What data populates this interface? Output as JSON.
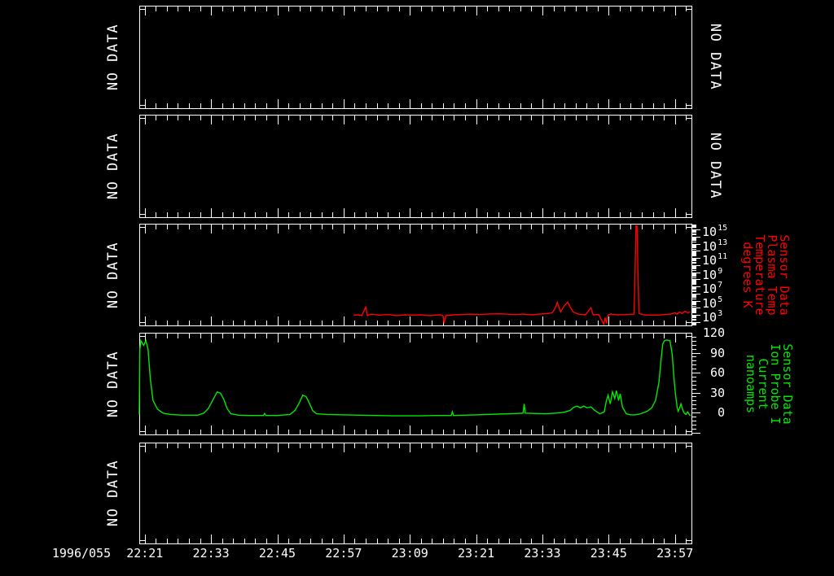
{
  "colors": {
    "background": "#000000",
    "frame": "#ffffff",
    "temperature_series": "#ff0000",
    "current_series": "#00e800"
  },
  "time_axis": {
    "date_label": "1996/055",
    "labels": [
      "22:21",
      "22:33",
      "22:45",
      "22:57",
      "23:09",
      "23:21",
      "23:33",
      "23:45",
      "23:57"
    ],
    "label_minutes_after_2200": [
      21,
      33,
      45,
      57,
      69,
      81,
      93,
      105,
      117
    ],
    "range_minutes_after_2200": [
      20,
      120
    ],
    "major_tick_interval_min": 12,
    "minor_tick_interval_min": 2
  },
  "panels": [
    {
      "left_label": "NO DATA",
      "right_label": "NO DATA"
    },
    {
      "left_label": "NO DATA",
      "right_label": "NO DATA"
    },
    {
      "left_label": "NO DATA",
      "right_label_lines": [
        "Sensor Data",
        "Plasma Temp",
        "Temperature",
        "degrees K"
      ],
      "right_label_color": "#ff0000"
    },
    {
      "left_label": "NO DATA",
      "right_label_lines": [
        "Sensor Data",
        "Ion Probe I",
        "Current",
        "nanoamps"
      ],
      "right_label_color": "#00e800"
    },
    {
      "left_label": "NO DATA"
    }
  ],
  "chart_data": [
    {
      "panel": 1,
      "type": "empty",
      "label": "NO DATA"
    },
    {
      "panel": 2,
      "type": "empty",
      "label": "NO DATA"
    },
    {
      "panel": 3,
      "type": "line",
      "series_name": "Sensor Data Plasma Temp Temperature degrees K",
      "color": "#ff0000",
      "x_unit": "minutes after 22:00 on 1996/055",
      "y_axis": {
        "scale": "log10",
        "base": "10",
        "tick_exponents": [
          15,
          13,
          11,
          9,
          7,
          5,
          3
        ],
        "visible_range_log10": [
          1.5,
          15.8
        ],
        "legend_position": "right"
      },
      "points_t_log10K": [
        [
          58.8,
          2.95
        ],
        [
          59.5,
          3.0
        ],
        [
          60.3,
          2.9
        ],
        [
          61.0,
          4.1
        ],
        [
          61.3,
          2.9
        ],
        [
          62.0,
          3.1
        ],
        [
          63.5,
          2.95
        ],
        [
          65.0,
          3.05
        ],
        [
          66.5,
          2.9
        ],
        [
          68.0,
          3.0
        ],
        [
          69.5,
          2.95
        ],
        [
          71.0,
          3.0
        ],
        [
          72.5,
          2.9
        ],
        [
          74.5,
          3.0
        ],
        [
          75.0,
          2.85
        ],
        [
          75.2,
          1.8
        ],
        [
          75.5,
          2.9
        ],
        [
          77.0,
          3.0
        ],
        [
          78.5,
          3.05
        ],
        [
          80.0,
          3.1
        ],
        [
          81.5,
          3.05
        ],
        [
          83.0,
          3.1
        ],
        [
          85.0,
          3.15
        ],
        [
          86.5,
          3.1
        ],
        [
          88.0,
          3.05
        ],
        [
          89.5,
          3.1
        ],
        [
          91.0,
          3.0
        ],
        [
          92.5,
          3.1
        ],
        [
          94.0,
          3.2
        ],
        [
          94.8,
          3.3
        ],
        [
          95.3,
          3.9
        ],
        [
          95.7,
          4.75
        ],
        [
          96.3,
          3.4
        ],
        [
          96.9,
          4.2
        ],
        [
          97.6,
          4.8
        ],
        [
          98.1,
          4.0
        ],
        [
          98.6,
          3.4
        ],
        [
          99.5,
          3.1
        ],
        [
          100.8,
          3.0
        ],
        [
          101.8,
          4.0
        ],
        [
          102.2,
          3.0
        ],
        [
          103.2,
          3.05
        ],
        [
          104.1,
          1.7
        ],
        [
          104.35,
          2.6
        ],
        [
          104.6,
          1.8
        ],
        [
          104.9,
          3.0
        ],
        [
          105.5,
          3.1
        ],
        [
          106.8,
          3.0
        ],
        [
          108.2,
          3.05
        ],
        [
          109.6,
          3.1
        ],
        [
          109.8,
          9.2
        ],
        [
          109.95,
          15.5
        ],
        [
          110.15,
          15.5
        ],
        [
          110.3,
          9.2
        ],
        [
          110.5,
          3.2
        ],
        [
          111.5,
          3.0
        ],
        [
          112.8,
          2.95
        ],
        [
          114.5,
          3.0
        ],
        [
          116.2,
          3.1
        ],
        [
          117.0,
          3.3
        ],
        [
          117.4,
          3.1
        ],
        [
          117.8,
          3.4
        ],
        [
          118.3,
          3.2
        ],
        [
          118.8,
          3.5
        ],
        [
          119.3,
          3.3
        ],
        [
          119.8,
          3.4
        ]
      ]
    },
    {
      "panel": 4,
      "type": "line",
      "series_name": "Sensor Data Ion Probe I Current nanoamps",
      "color": "#00e800",
      "x_unit": "minutes after 22:00 on 1996/055",
      "y_axis": {
        "scale": "linear",
        "tick_labels": [
          "120",
          "90",
          "60",
          "30",
          "0"
        ],
        "tick_values": [
          120,
          90,
          60,
          30,
          0
        ],
        "visible_range": [
          -33,
          122
        ],
        "minor_tick_step": 6,
        "legend_position": "right"
      },
      "points_t_nA": [
        [
          20.0,
          -3
        ],
        [
          20.1,
          95
        ],
        [
          20.3,
          108
        ],
        [
          20.8,
          101
        ],
        [
          21.2,
          108
        ],
        [
          21.6,
          95
        ],
        [
          22.0,
          50
        ],
        [
          22.5,
          18
        ],
        [
          23.3,
          5
        ],
        [
          24.3,
          -1
        ],
        [
          25.6,
          -3
        ],
        [
          28.0,
          -4
        ],
        [
          30.6,
          -4
        ],
        [
          31.7,
          -1
        ],
        [
          32.5,
          6
        ],
        [
          33.4,
          20
        ],
        [
          34.1,
          31
        ],
        [
          34.7,
          29
        ],
        [
          35.3,
          20
        ],
        [
          35.9,
          6
        ],
        [
          36.6,
          -2
        ],
        [
          38.0,
          -4
        ],
        [
          40.0,
          -4.5
        ],
        [
          42.5,
          -4.5
        ],
        [
          42.7,
          -1.5
        ],
        [
          42.9,
          -4.5
        ],
        [
          45.0,
          -4.5
        ],
        [
          47.3,
          -3
        ],
        [
          48.2,
          3
        ],
        [
          49.0,
          15
        ],
        [
          49.6,
          26
        ],
        [
          50.2,
          24
        ],
        [
          50.8,
          14
        ],
        [
          51.4,
          3
        ],
        [
          52.1,
          -2
        ],
        [
          54.0,
          -3
        ],
        [
          57.0,
          -3.5
        ],
        [
          60.0,
          -4
        ],
        [
          63.0,
          -4.5
        ],
        [
          66.0,
          -5
        ],
        [
          69.0,
          -5
        ],
        [
          71.0,
          -5
        ],
        [
          73.5,
          -4.5
        ],
        [
          76.5,
          -4.5
        ],
        [
          76.7,
          1
        ],
        [
          76.9,
          -4.5
        ],
        [
          79.0,
          -4
        ],
        [
          81.0,
          -3.5
        ],
        [
          83.0,
          -3
        ],
        [
          85.0,
          -2.5
        ],
        [
          87.0,
          -2
        ],
        [
          88.5,
          -1.5
        ],
        [
          89.5,
          -1
        ],
        [
          89.7,
          13
        ],
        [
          89.9,
          -1
        ],
        [
          91.5,
          -1.5
        ],
        [
          93.5,
          -2
        ],
        [
          95.5,
          -1
        ],
        [
          97.0,
          0.5
        ],
        [
          98.0,
          3
        ],
        [
          98.7,
          8
        ],
        [
          99.3,
          9.5
        ],
        [
          99.9,
          7
        ],
        [
          100.5,
          9.5
        ],
        [
          101.1,
          7
        ],
        [
          101.8,
          8.5
        ],
        [
          102.5,
          3
        ],
        [
          103.4,
          -2
        ],
        [
          104.2,
          1
        ],
        [
          104.6,
          18
        ],
        [
          104.9,
          26
        ],
        [
          105.3,
          13
        ],
        [
          105.7,
          31
        ],
        [
          106.1,
          21
        ],
        [
          106.4,
          33
        ],
        [
          106.8,
          18
        ],
        [
          107.1,
          28
        ],
        [
          107.5,
          8
        ],
        [
          108.2,
          -2
        ],
        [
          109.0,
          -3.5
        ],
        [
          109.8,
          -3.5
        ],
        [
          110.6,
          -2.5
        ],
        [
          111.3,
          -0.5
        ],
        [
          112.0,
          2
        ],
        [
          112.8,
          7
        ],
        [
          113.5,
          18
        ],
        [
          114.1,
          45
        ],
        [
          114.5,
          80
        ],
        [
          114.8,
          103
        ],
        [
          115.1,
          108
        ],
        [
          115.5,
          109
        ],
        [
          116.1,
          108
        ],
        [
          116.5,
          88
        ],
        [
          116.8,
          55
        ],
        [
          117.1,
          28
        ],
        [
          117.4,
          8
        ],
        [
          117.6,
          2
        ],
        [
          117.8,
          6
        ],
        [
          118.1,
          13
        ],
        [
          118.4,
          4
        ],
        [
          118.7,
          -1
        ],
        [
          119.0,
          -3
        ],
        [
          119.3,
          1
        ],
        [
          119.6,
          -3
        ],
        [
          119.8,
          -5
        ]
      ]
    },
    {
      "panel": 5,
      "type": "empty",
      "label": "NO DATA"
    }
  ]
}
